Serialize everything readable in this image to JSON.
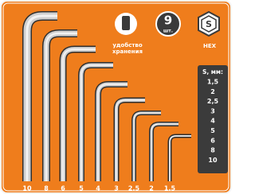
{
  "key_labels": [
    "10",
    "8",
    "6",
    "5",
    "4",
    "3",
    "2,5",
    "2",
    "1,5"
  ],
  "storage": {
    "line1": "удобство",
    "line2": "хранения"
  },
  "count": {
    "number": "9",
    "unit": "шт."
  },
  "hex": {
    "label": "HEX",
    "symbol": "S"
  },
  "size_table": {
    "header": "S, мм:",
    "rows": [
      "1,5",
      "2",
      "2,5",
      "3",
      "4",
      "5",
      "6",
      "8",
      "10"
    ]
  }
}
